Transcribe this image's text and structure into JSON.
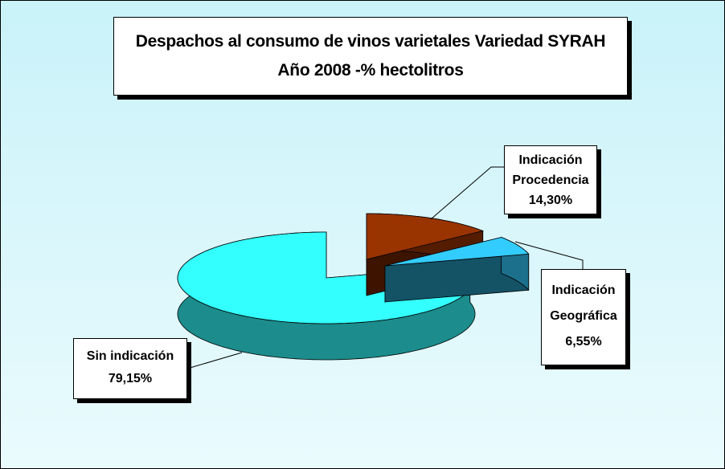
{
  "chart_data": {
    "type": "pie3d",
    "title": "Despachos al consumo de vinos varietales Variedad SYRAH Año 2008 -% hectolitros",
    "categories": [
      "Indicación Procedencia",
      "Indicación Geográfica",
      "Sin indicación"
    ],
    "values": [
      14.3,
      6.55,
      79.15
    ],
    "value_labels": [
      "14,30%",
      "6,55%",
      "79,15%"
    ],
    "colors": [
      "#993300",
      "#33ccff",
      "#33ffff"
    ]
  }
}
